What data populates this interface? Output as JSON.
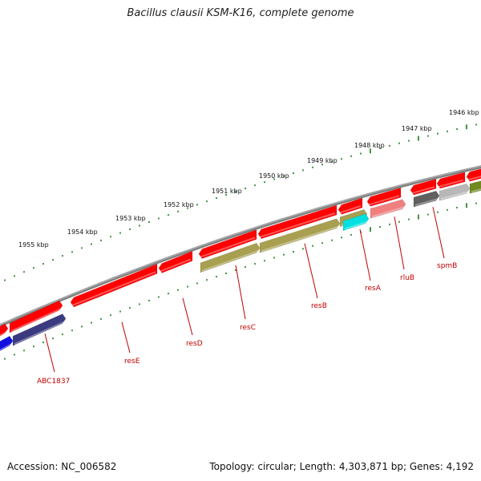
{
  "title": "Bacillus clausii KSM-K16, complete genome",
  "footer": {
    "accession": "Accession: NC_006582",
    "summary": "Topology: circular; Length: 4,303,871 bp; Genes: 4,192"
  },
  "kbp_labels": [
    "1955 kbp",
    "1954 kbp",
    "1953 kbp",
    "1952 kbp",
    "1951 kbp",
    "1950 kbp",
    "1949 kbp",
    "1948 kbp",
    "1947 kbp",
    "1946 kbp"
  ],
  "gene_labels": [
    "ABC1837",
    "resE",
    "resD",
    "resC",
    "resB",
    "resA",
    "rluB",
    "spmB"
  ],
  "colors": {
    "backbone": "#808080",
    "gene_red": "#ff0000",
    "gene_light_red": "#f08080",
    "tick_green": "#1a7a1a",
    "olive": "#a8a050",
    "navy": "#3a3a80",
    "blue": "#1010e0",
    "cyan": "#00e0e0",
    "dark_gray": "#606060",
    "light_gray": "#b8b8b8",
    "green_olive": "#708a20",
    "label_red": "#c00000"
  }
}
